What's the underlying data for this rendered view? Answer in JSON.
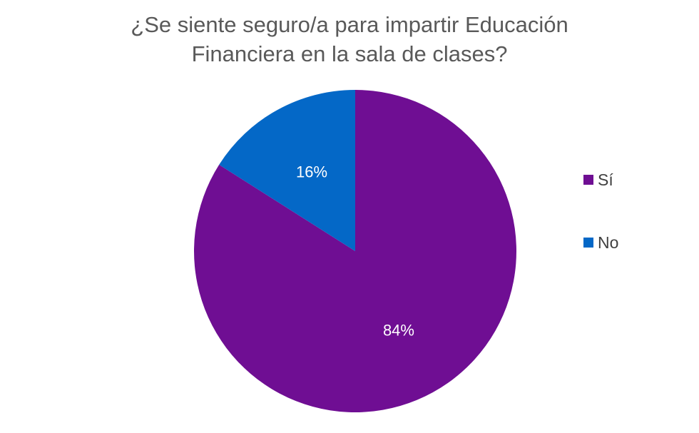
{
  "chart_data": {
    "type": "pie",
    "title_lines": [
      "¿Se siente seguro/a para impartir Educación",
      "Financiera en la sala de clases?"
    ],
    "slices": [
      {
        "label": "Sí",
        "value": 84,
        "data_label": "84%",
        "color": "#6F0E93"
      },
      {
        "label": "No",
        "value": 16,
        "data_label": "16%",
        "color": "#0468C7"
      }
    ],
    "legend_position": "right",
    "data_label_color": "#FFFFFF"
  }
}
